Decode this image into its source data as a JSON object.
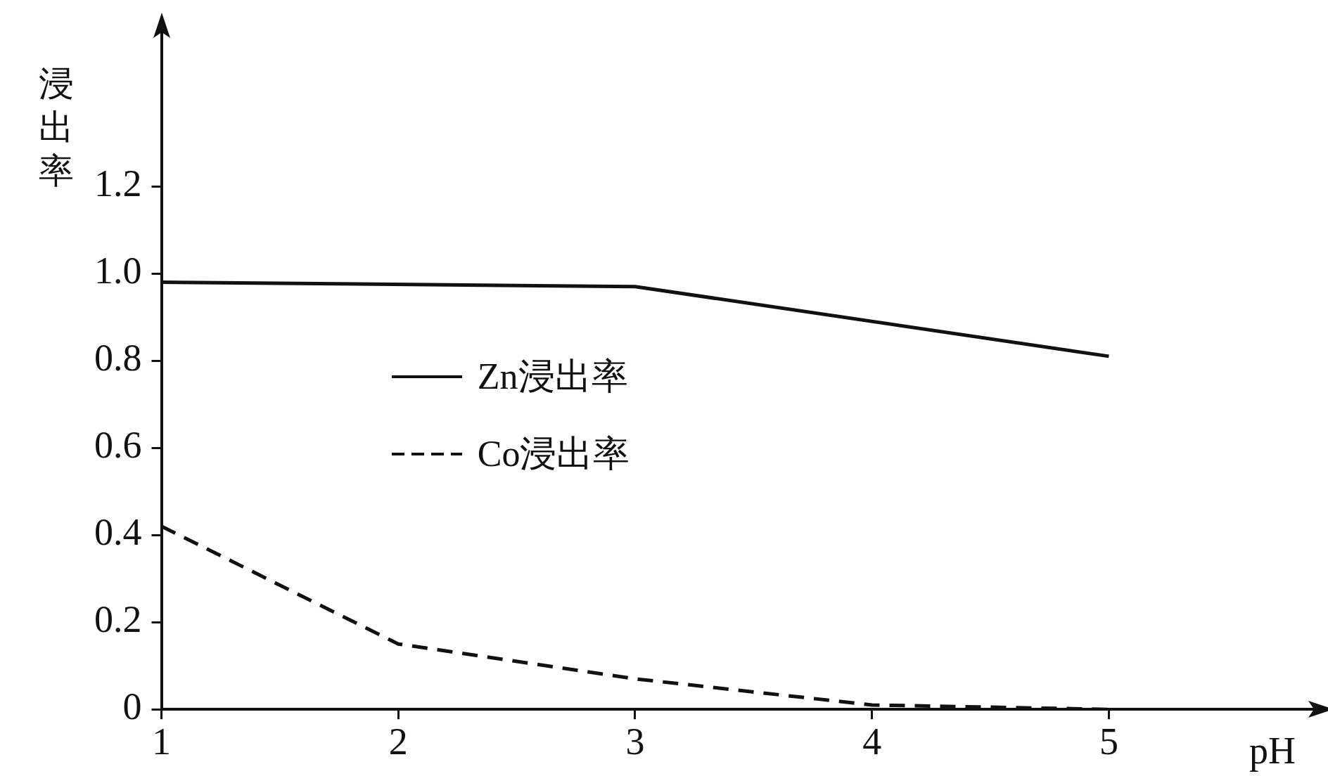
{
  "chart_data": {
    "type": "line",
    "xlabel": "pH",
    "ylabel": "浸出率",
    "xlim": [
      1,
      5.86
    ],
    "xticks": [
      1,
      2,
      3,
      4,
      5
    ],
    "ylim": [
      0,
      1.55
    ],
    "yticks": [
      0,
      0.2,
      0.4,
      0.6,
      0.8,
      {
        "value": 1,
        "label": "1.0"
      },
      1.2
    ],
    "grid": false,
    "legend": "center left",
    "marker": "none",
    "series": [
      {
        "name": "Zn浸出率",
        "color": "#111111",
        "line_style": "solid",
        "x": [
          1,
          3,
          5
        ],
        "values": [
          0.98,
          0.97,
          0.81
        ]
      },
      {
        "name": "Co浸出率",
        "color": "#111111",
        "line_style": "dashed",
        "x": [
          1,
          2,
          3,
          4,
          5
        ],
        "values": [
          0.42,
          0.15,
          0.07,
          0.01,
          0
        ]
      }
    ]
  }
}
